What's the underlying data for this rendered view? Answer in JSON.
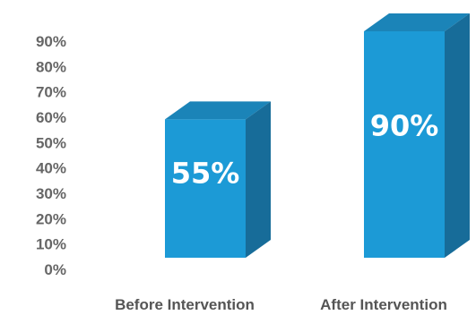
{
  "chart_data": {
    "type": "bar",
    "style": "3d",
    "categories": [
      "Before Intervention",
      "After Intervention"
    ],
    "values": [
      55,
      90
    ],
    "data_labels": [
      "55%",
      "90%"
    ],
    "y_ticks": [
      "0%",
      "10%",
      "20%",
      "30%",
      "40%",
      "50%",
      "60%",
      "70%",
      "80%",
      "90%"
    ],
    "ylim": [
      0,
      90
    ],
    "grid": false,
    "legend": "none",
    "colors": {
      "front": "#1c9ad6",
      "top": "#1b84b8",
      "side": "#176c99",
      "tick_text": "#666666",
      "category_text": "#555555",
      "label_text": "#ffffff"
    }
  }
}
